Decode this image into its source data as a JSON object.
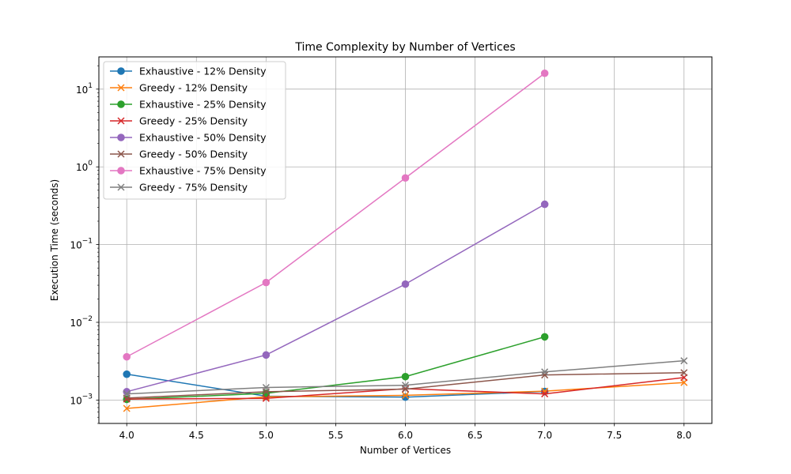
{
  "chart_data": {
    "type": "line",
    "title": "Time Complexity by Number of Vertices",
    "xlabel": "Number of Vertices",
    "ylabel": "Execution Time (seconds)",
    "xlim": [
      3.8,
      8.2
    ],
    "ylim": [
      0.0005,
      26
    ],
    "yscale": "log",
    "grid": true,
    "legend_position": "top-left",
    "x_ticks": [
      "4.0",
      "4.5",
      "5.0",
      "5.5",
      "6.0",
      "6.5",
      "7.0",
      "7.5",
      "8.0"
    ],
    "y_ticks": [
      {
        "base": "10",
        "exp": "1",
        "value": 10
      },
      {
        "base": "10",
        "exp": "0",
        "value": 1
      },
      {
        "base": "10",
        "exp": "−1",
        "value": 0.1
      },
      {
        "base": "10",
        "exp": "−2",
        "value": 0.01
      },
      {
        "base": "10",
        "exp": "−3",
        "value": 0.001
      }
    ],
    "series": [
      {
        "name": "Exhaustive - 12% Density",
        "color": "#1f77b4",
        "marker": "circle",
        "x": [
          4,
          5,
          6,
          7
        ],
        "values": [
          0.00215,
          0.00112,
          0.00109,
          0.00129
        ]
      },
      {
        "name": "Greedy - 12% Density",
        "color": "#ff7f0e",
        "marker": "x",
        "x": [
          4,
          5,
          6,
          7,
          8
        ],
        "values": [
          0.00078,
          0.0011,
          0.00115,
          0.0013,
          0.00168
        ]
      },
      {
        "name": "Exhaustive - 25% Density",
        "color": "#2ca02c",
        "marker": "circle",
        "x": [
          4,
          5,
          6,
          7
        ],
        "values": [
          0.00102,
          0.00122,
          0.002,
          0.0065
        ]
      },
      {
        "name": "Greedy - 25% Density",
        "color": "#d62728",
        "marker": "x",
        "x": [
          4,
          5,
          6,
          7,
          8
        ],
        "values": [
          0.00103,
          0.00105,
          0.0014,
          0.0012,
          0.00195
        ]
      },
      {
        "name": "Exhaustive - 50% Density",
        "color": "#9467bd",
        "marker": "circle",
        "x": [
          4,
          5,
          6,
          7
        ],
        "values": [
          0.00128,
          0.0038,
          0.031,
          0.33
        ]
      },
      {
        "name": "Greedy - 50% Density",
        "color": "#8c564b",
        "marker": "x",
        "x": [
          4,
          5,
          6,
          7,
          8
        ],
        "values": [
          0.00106,
          0.00128,
          0.00138,
          0.0021,
          0.00225
        ]
      },
      {
        "name": "Exhaustive - 75% Density",
        "color": "#e377c2",
        "marker": "circle",
        "x": [
          4,
          5,
          6,
          7
        ],
        "values": [
          0.0036,
          0.0325,
          0.72,
          16.0
        ]
      },
      {
        "name": "Greedy - 75% Density",
        "color": "#7f7f7f",
        "marker": "x",
        "x": [
          4,
          5,
          6,
          7,
          8
        ],
        "values": [
          0.0012,
          0.00145,
          0.00155,
          0.0023,
          0.0032
        ]
      }
    ]
  }
}
